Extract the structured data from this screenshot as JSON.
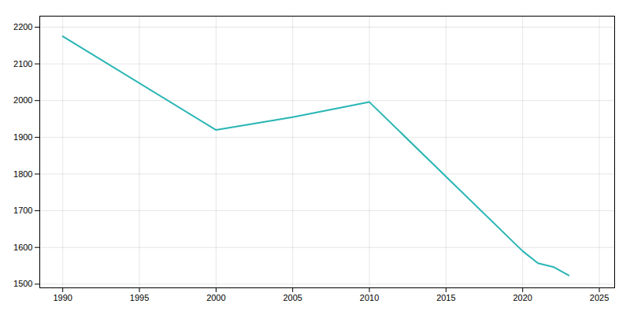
{
  "chart_data": {
    "type": "line",
    "x": [
      1990,
      2000,
      2005,
      2010,
      2020,
      2021,
      2022,
      2023
    ],
    "values": [
      2175,
      1920,
      1955,
      1996,
      1590,
      1557,
      1547,
      1524
    ],
    "color": "#2ab5b5",
    "xlim": [
      1988.5,
      2026
    ],
    "ylim": [
      1490,
      2230
    ],
    "xticks": [
      1990,
      1995,
      2000,
      2005,
      2010,
      2015,
      2020,
      2025
    ],
    "yticks": [
      1500,
      1600,
      1700,
      1800,
      1900,
      2000,
      2100,
      2200
    ],
    "grid": true
  }
}
